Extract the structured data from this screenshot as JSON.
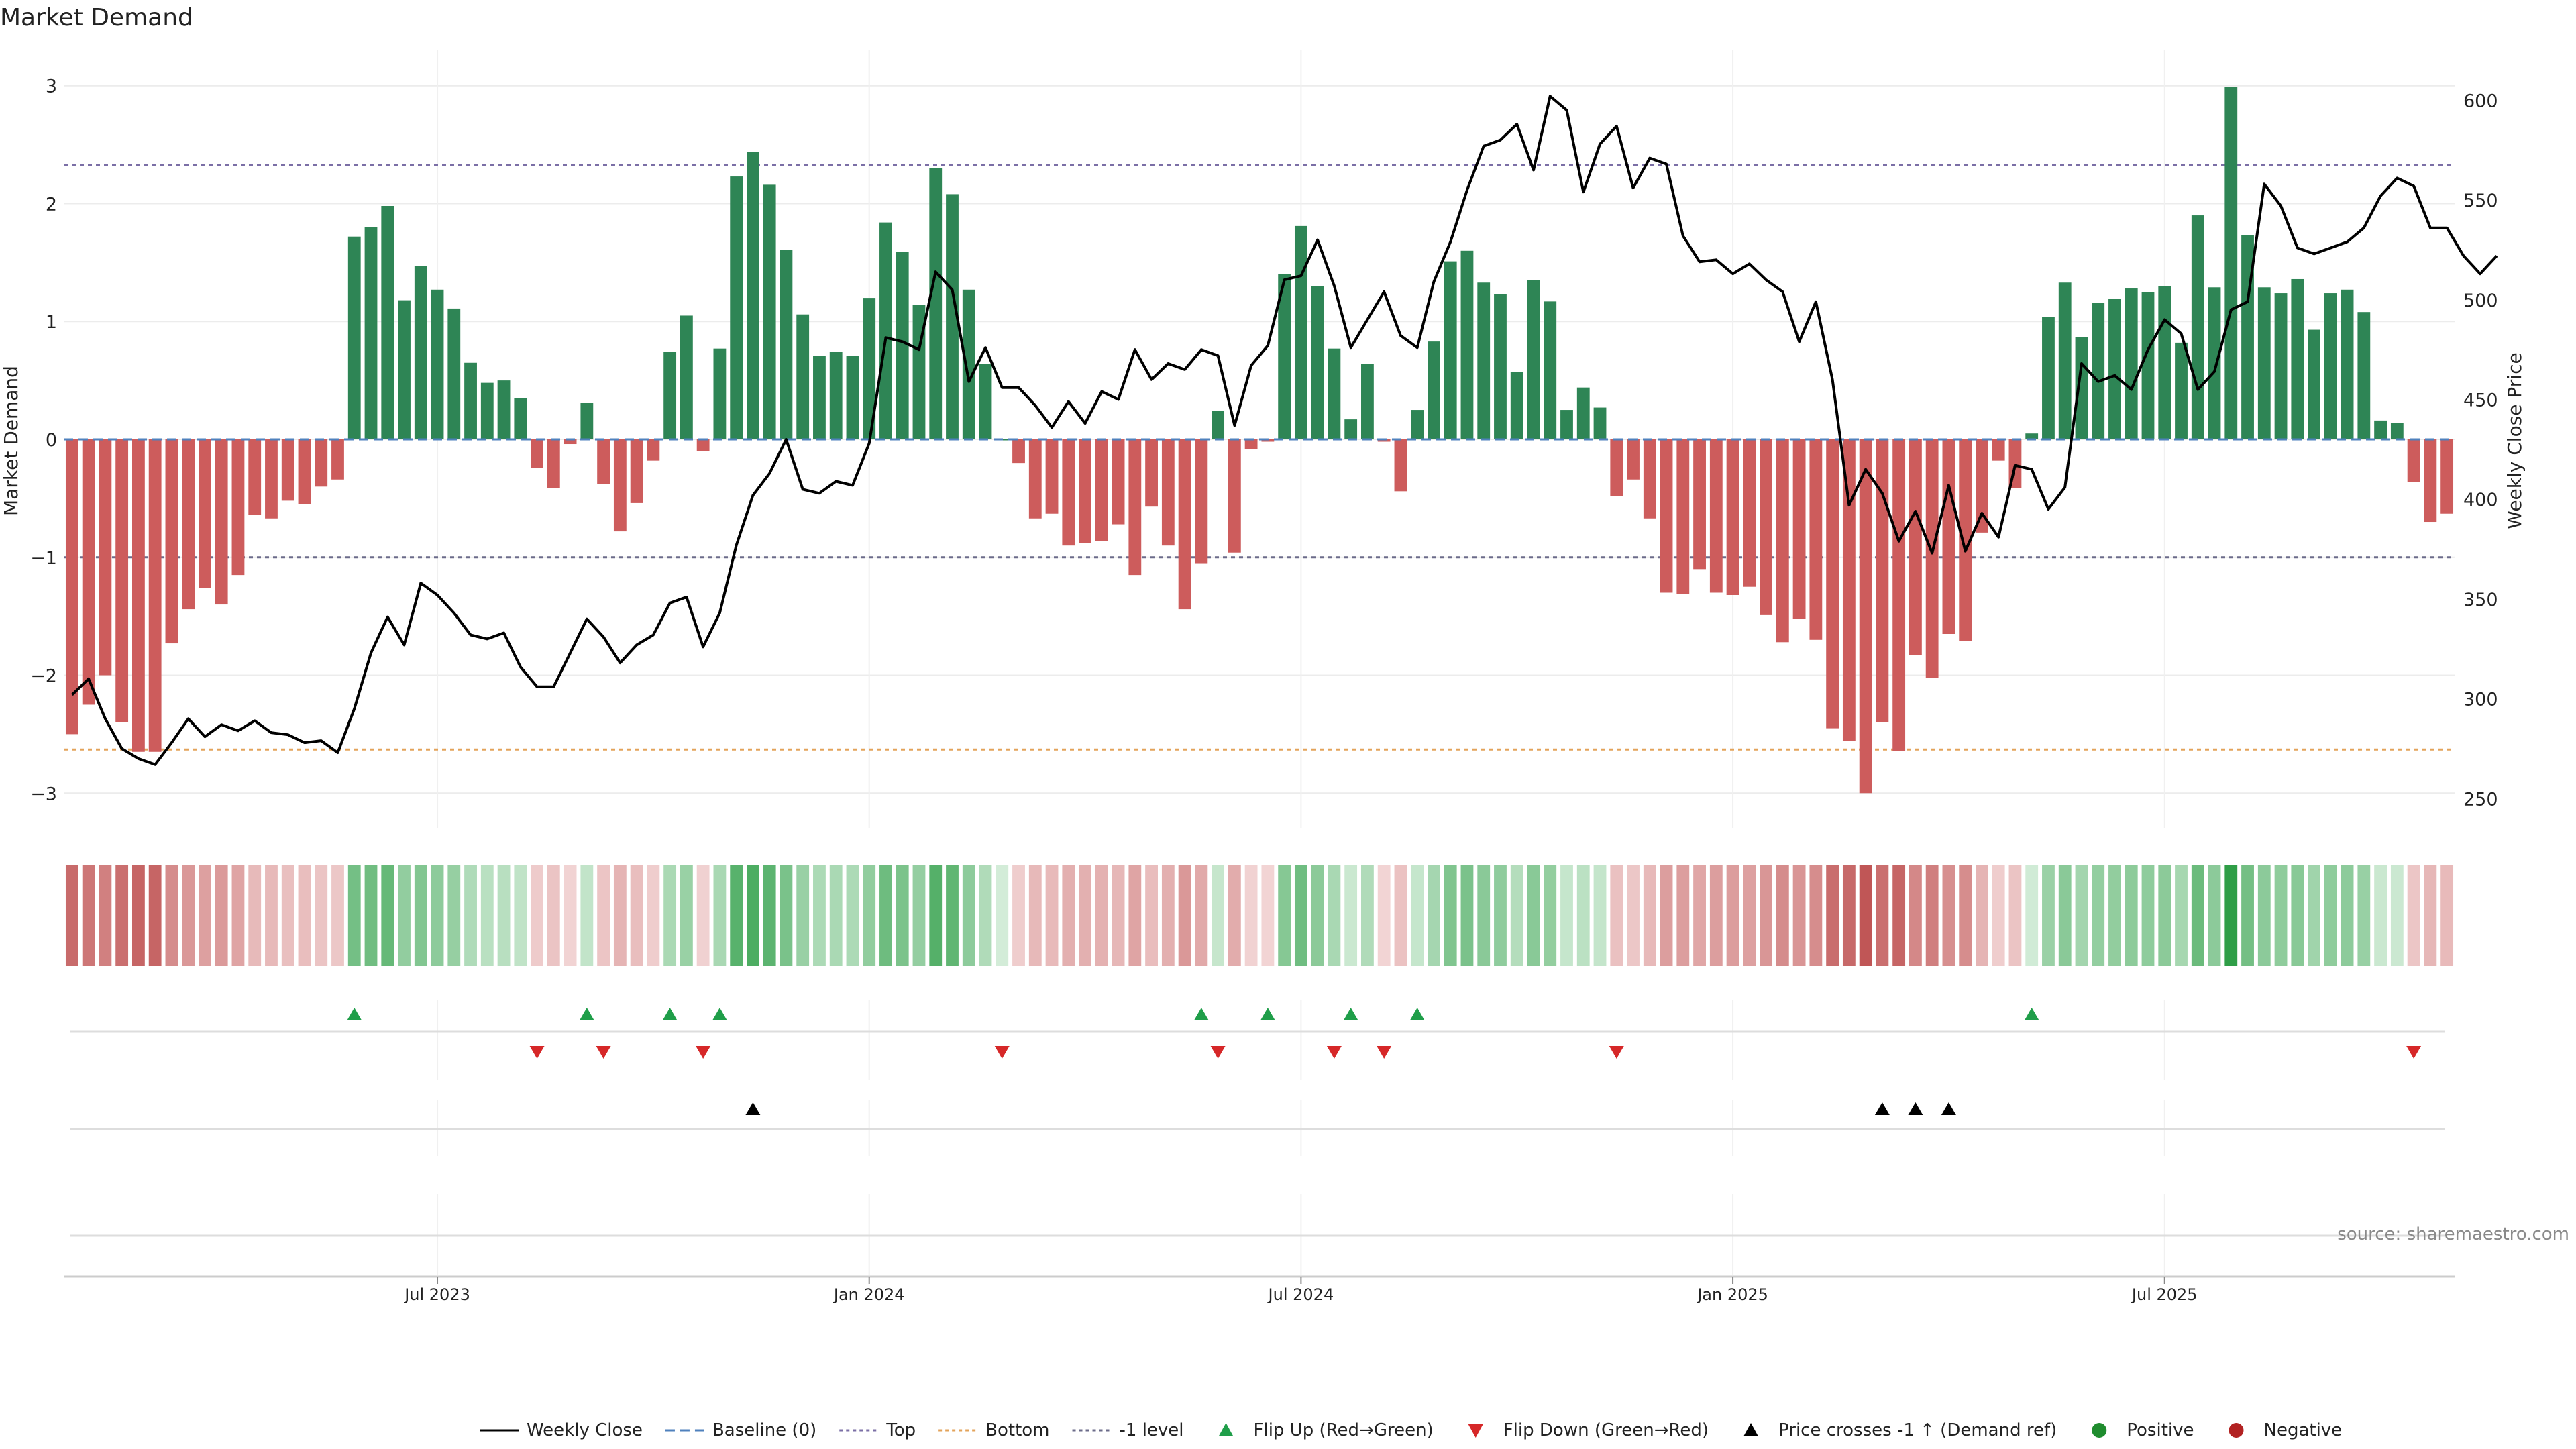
{
  "chart_data": {
    "type": "bar",
    "title": "Market Demand",
    "ylabel_left": "Market Demand",
    "ylabel_right": "Weekly Close Price",
    "ylim_left": [
      -3.3,
      3.3
    ],
    "ylim_right": [
      235,
      625
    ],
    "y_ticks_left": [
      "3",
      "2",
      "1",
      "0",
      "−1",
      "−2",
      "−3"
    ],
    "y_ticks_left_values": [
      3,
      2,
      1,
      0,
      -1,
      -2,
      -3
    ],
    "y_ticks_right": [
      "600",
      "550",
      "500",
      "450",
      "400",
      "350",
      "300",
      "250"
    ],
    "y_ticks_right_values": [
      600,
      550,
      500,
      450,
      400,
      350,
      300,
      250
    ],
    "x_ticks": [
      "Jul 2023",
      "Jan 2024",
      "Jul 2024",
      "Jan 2025",
      "Jul 2025"
    ],
    "x_tick_week_index": [
      22,
      48,
      74,
      100,
      126
    ],
    "grid": true,
    "reference_lines": {
      "top": 2.33,
      "bottom": -2.63,
      "minus_one": -1,
      "baseline": 0
    },
    "demand": [
      -2.5,
      -2.25,
      -2.0,
      -2.4,
      -2.65,
      -2.65,
      -1.73,
      -1.44,
      -1.26,
      -1.4,
      -1.15,
      -0.64,
      -0.67,
      -0.52,
      -0.55,
      -0.4,
      -0.34,
      1.72,
      1.8,
      1.98,
      1.18,
      1.47,
      1.27,
      1.11,
      0.65,
      0.48,
      0.5,
      0.35,
      -0.24,
      -0.41,
      -0.04,
      0.31,
      -0.38,
      -0.78,
      -0.54,
      -0.18,
      0.74,
      1.05,
      -0.1,
      0.77,
      2.23,
      2.44,
      2.16,
      1.61,
      1.06,
      0.71,
      0.74,
      0.71,
      1.2,
      1.84,
      1.59,
      1.14,
      2.3,
      2.08,
      1.27,
      0.64,
      0.0,
      -0.2,
      -0.67,
      -0.63,
      -0.9,
      -0.88,
      -0.86,
      -0.72,
      -1.15,
      -0.57,
      -0.9,
      -1.44,
      -1.05,
      0.24,
      -0.96,
      -0.08,
      -0.02,
      1.4,
      1.81,
      1.3,
      0.77,
      0.17,
      0.64,
      -0.02,
      -0.44,
      0.25,
      0.83,
      1.51,
      1.6,
      1.33,
      1.23,
      0.57,
      1.35,
      1.17,
      0.25,
      0.44,
      0.27,
      -0.48,
      -0.34,
      -0.67,
      -1.3,
      -1.31,
      -1.1,
      -1.3,
      -1.32,
      -1.25,
      -1.49,
      -1.72,
      -1.52,
      -1.7,
      -2.45,
      -2.56,
      -3.0,
      -2.4,
      -2.64,
      -1.83,
      -2.02,
      -1.65,
      -1.71,
      -0.79,
      -0.18,
      -0.41,
      0.05,
      1.04,
      1.33,
      0.87,
      1.16,
      1.19,
      1.28,
      1.25,
      1.3,
      0.82,
      1.9,
      1.29,
      2.99,
      1.73,
      1.29,
      1.24,
      1.36,
      0.93,
      1.24,
      1.27,
      1.08,
      0.16,
      0.14,
      -0.36,
      -0.7,
      -0.63
    ],
    "price": [
      302,
      310,
      290,
      275,
      270,
      267,
      278,
      290,
      281,
      287,
      284,
      289,
      283,
      282,
      278,
      279,
      273,
      295,
      323,
      341,
      327,
      358,
      352,
      343,
      332,
      330,
      333,
      316,
      306,
      306,
      323,
      340,
      331,
      318,
      327,
      332,
      348,
      351,
      326,
      343,
      377,
      402,
      413,
      430,
      405,
      403,
      409,
      407,
      428,
      481,
      479,
      475,
      514,
      505,
      459,
      476,
      456,
      456,
      447,
      436,
      449,
      438,
      454,
      450,
      475,
      460,
      468,
      465,
      475,
      472,
      437,
      467,
      477,
      510,
      512,
      530,
      507,
      476,
      490,
      504,
      482,
      476,
      509,
      529,
      555,
      577,
      580,
      588,
      565,
      602,
      595,
      554,
      578,
      587,
      556,
      571,
      568,
      532,
      519,
      520,
      513,
      518,
      510,
      504,
      479,
      499,
      460,
      397,
      415,
      403,
      379,
      394,
      373,
      407,
      374,
      393,
      381,
      417,
      415,
      395,
      406,
      468,
      459,
      462,
      455,
      475,
      490,
      483,
      455,
      464,
      495,
      499,
      558,
      547,
      526,
      523,
      526,
      529,
      536,
      552,
      561,
      557,
      536,
      536,
      522,
      513,
      522
    ],
    "flip_up_idx": [
      17,
      31,
      36,
      39,
      68,
      72,
      77,
      81,
      118
    ],
    "flip_down_idx": [
      28,
      32,
      38,
      56,
      69,
      76,
      79,
      93,
      141
    ],
    "price_cross_idx": [
      41,
      109,
      111,
      113
    ],
    "legend": [
      "Weekly Close",
      "Baseline (0)",
      "Top",
      "Bottom",
      "-1 level",
      "Flip Up (Red→Green)",
      "Flip Down (Green→Red)",
      "Price crosses -1 ↑ (Demand ref)",
      "Positive",
      "Negative"
    ],
    "source": "source: sharemaestro.com"
  },
  "colors": {
    "positive_bar": "#2e8555",
    "negative_bar": "#cd5c5c",
    "price_line": "#000000",
    "baseline": "#4f81bd",
    "top_line": "#7b6fa6",
    "bottom_line": "#e3a35a",
    "minus_one_line": "#6b6b8a",
    "flip_up": "#1f9e49",
    "flip_down": "#d62728",
    "price_cross": "#000000",
    "positive_dot": "#1f8c2e",
    "negative_dot": "#b22222"
  }
}
